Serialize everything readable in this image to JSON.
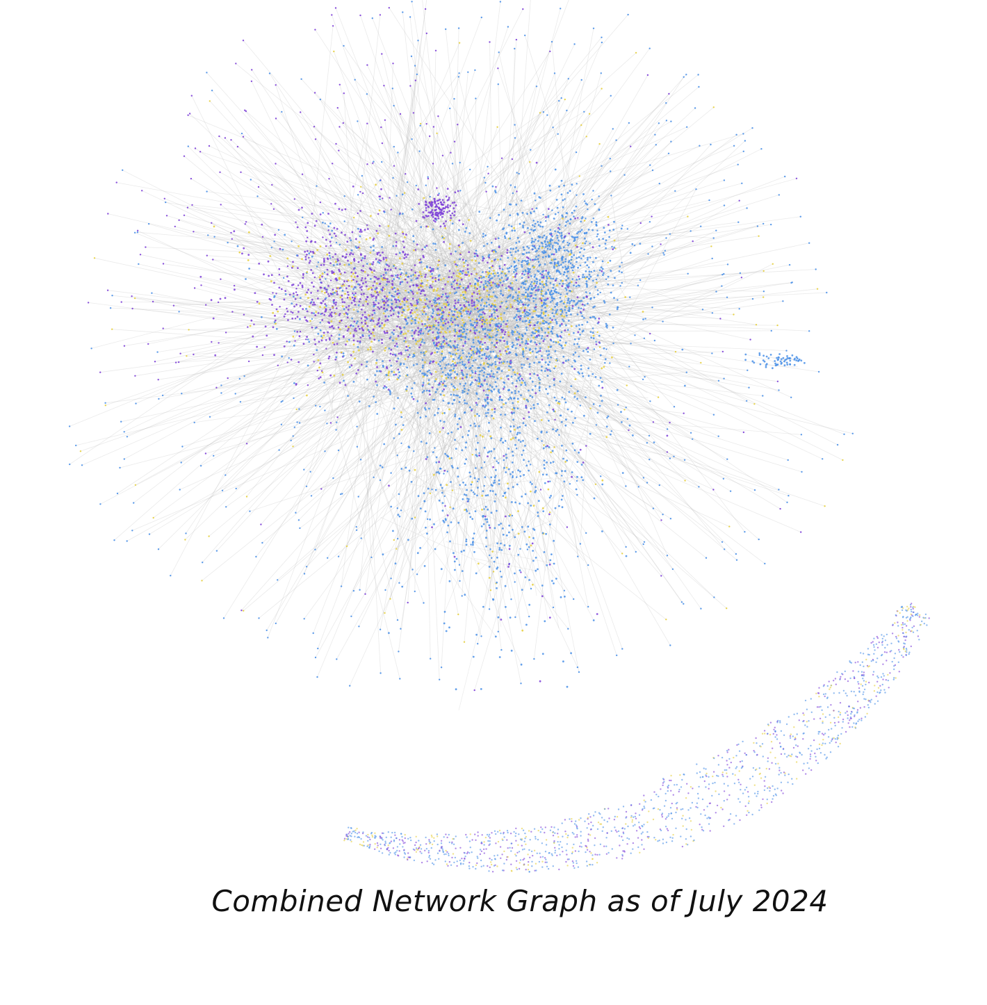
{
  "caption": "Combined Network Graph as of July 2024",
  "colors": {
    "purple": "#7d3fd8",
    "blue": "#4a90e8",
    "yellow": "#e6cf3c",
    "edge": "#b8b8b8",
    "background": "#ffffff"
  }
}
